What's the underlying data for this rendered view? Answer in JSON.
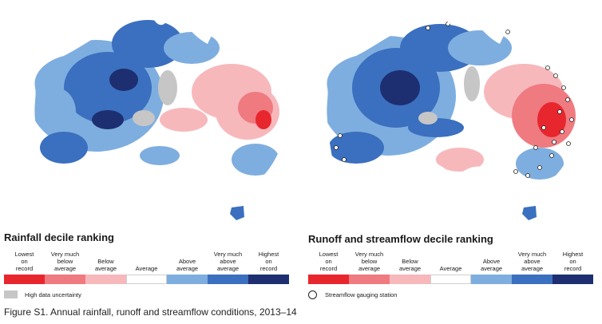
{
  "rainfall": {
    "title": "Rainfall decile ranking",
    "uncertainty_label": "High data uncertainty",
    "uncertainty_color": "#c6c6c6"
  },
  "runoff": {
    "title": "Runoff and streamflow decile ranking",
    "gauge_label": "Streamflow gauging station"
  },
  "legend": [
    {
      "label": "Lowest\non\nrecord",
      "color": "#e8262e"
    },
    {
      "label": "Very much\nbelow\naverage",
      "color": "#ef7a80"
    },
    {
      "label": "Below\naverage",
      "color": "#f7b8bc"
    },
    {
      "label": "Average",
      "color": "#ffffff"
    },
    {
      "label": "Above\naverage",
      "color": "#7eaedf"
    },
    {
      "label": "Very much\nabove\naverage",
      "color": "#3b6fbf"
    },
    {
      "label": "Highest\non\nrecord",
      "color": "#1d2f70"
    }
  ],
  "caption": "Figure S1. Annual rainfall, runoff and streamflow conditions, 2013–14"
}
